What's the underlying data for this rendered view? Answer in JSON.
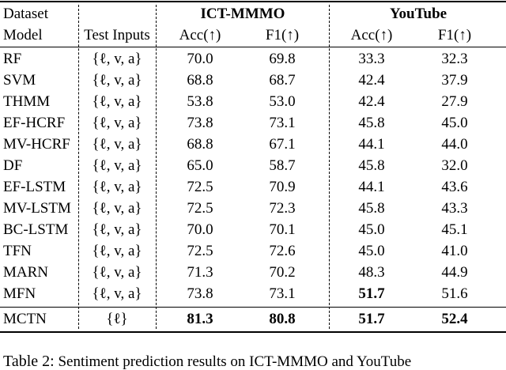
{
  "header": {
    "row1": {
      "dataset_label": "Dataset",
      "group1": "ICT-MMMO",
      "group2": "YouTube"
    },
    "row2": {
      "model_label": "Model",
      "inputs_label": "Test Inputs",
      "acc1": "Acc(↑)",
      "f11": "F1(↑)",
      "acc2": "Acc(↑)",
      "f12": "F1(↑)"
    }
  },
  "rows": [
    {
      "model": "RF",
      "inputs": "{ℓ, v, a}",
      "ict_acc": "70.0",
      "ict_f1": "69.8",
      "yt_acc": "33.3",
      "yt_f1": "32.3"
    },
    {
      "model": "SVM",
      "inputs": "{ℓ, v, a}",
      "ict_acc": "68.8",
      "ict_f1": "68.7",
      "yt_acc": "42.4",
      "yt_f1": "37.9"
    },
    {
      "model": "THMM",
      "inputs": "{ℓ, v, a}",
      "ict_acc": "53.8",
      "ict_f1": "53.0",
      "yt_acc": "42.4",
      "yt_f1": "27.9"
    },
    {
      "model": "EF-HCRF",
      "inputs": "{ℓ, v, a}",
      "ict_acc": "73.8",
      "ict_f1": "73.1",
      "yt_acc": "45.8",
      "yt_f1": "45.0"
    },
    {
      "model": "MV-HCRF",
      "inputs": "{ℓ, v, a}",
      "ict_acc": "68.8",
      "ict_f1": "67.1",
      "yt_acc": "44.1",
      "yt_f1": "44.0"
    },
    {
      "model": "DF",
      "inputs": "{ℓ, v, a}",
      "ict_acc": "65.0",
      "ict_f1": "58.7",
      "yt_acc": "45.8",
      "yt_f1": "32.0"
    },
    {
      "model": "EF-LSTM",
      "inputs": "{ℓ, v, a}",
      "ict_acc": "72.5",
      "ict_f1": "70.9",
      "yt_acc": "44.1",
      "yt_f1": "43.6"
    },
    {
      "model": "MV-LSTM",
      "inputs": "{ℓ, v, a}",
      "ict_acc": "72.5",
      "ict_f1": "72.3",
      "yt_acc": "45.8",
      "yt_f1": "43.3"
    },
    {
      "model": "BC-LSTM",
      "inputs": "{ℓ, v, a}",
      "ict_acc": "70.0",
      "ict_f1": "70.1",
      "yt_acc": "45.0",
      "yt_f1": "45.1"
    },
    {
      "model": "TFN",
      "inputs": "{ℓ, v, a}",
      "ict_acc": "72.5",
      "ict_f1": "72.6",
      "yt_acc": "45.0",
      "yt_f1": "41.0"
    },
    {
      "model": "MARN",
      "inputs": "{ℓ, v, a}",
      "ict_acc": "71.3",
      "ict_f1": "70.2",
      "yt_acc": "48.3",
      "yt_f1": "44.9"
    },
    {
      "model": "MFN",
      "inputs": "{ℓ, v, a}",
      "ict_acc": "73.8",
      "ict_f1": "73.1",
      "yt_acc": "51.7",
      "yt_f1": "51.6",
      "bold": [
        "yt_acc"
      ]
    },
    {
      "model": "MCTN",
      "inputs": "{ℓ}",
      "ict_acc": "81.3",
      "ict_f1": "80.8",
      "yt_acc": "51.7",
      "yt_f1": "52.4",
      "bold": [
        "ict_acc",
        "ict_f1",
        "yt_acc",
        "yt_f1"
      ]
    }
  ],
  "caption": {
    "head": "Table 2:",
    "text": "Sentiment prediction results on ICT-MMMO and YouTube"
  }
}
